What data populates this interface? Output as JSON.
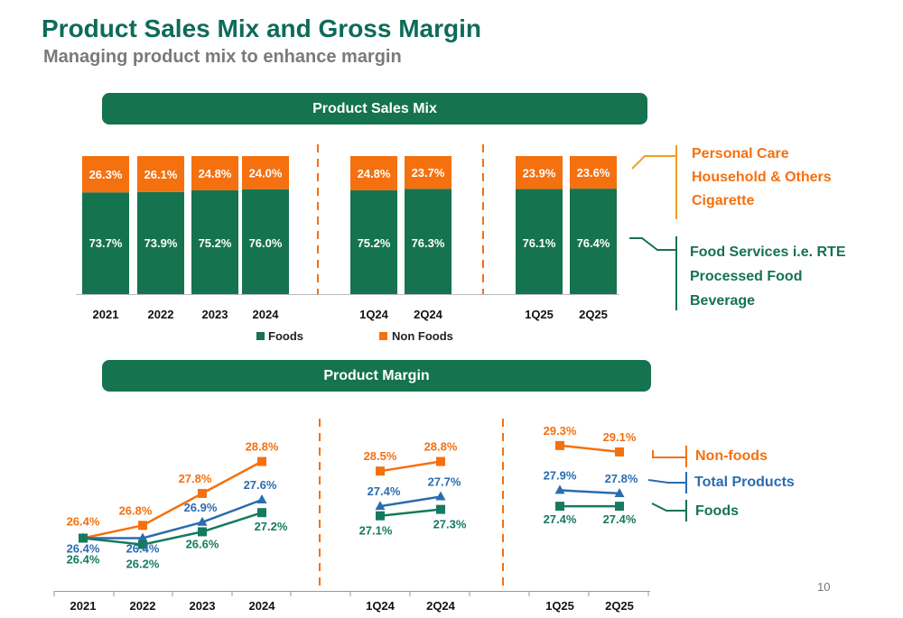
{
  "slide": {
    "title": "Product Sales Mix and Gross Margin",
    "subtitle": "Managing product mix to enhance margin",
    "page_number": "10"
  },
  "colors": {
    "foods": "#157350",
    "non_foods": "#f5700f",
    "total": "#2b6cb0",
    "foods_line": "#157a60",
    "banner": "#157350",
    "title": "#0e6b5a"
  },
  "sales_mix": {
    "banner": "Product Sales Mix",
    "legend": [
      "Foods",
      "Non Foods"
    ],
    "non_foods_bracket": [
      "Personal Care",
      "Household & Others",
      "Cigarette"
    ],
    "foods_bracket": [
      "Food Services i.e. RTE",
      "Processed Food",
      "Beverage"
    ]
  },
  "margin": {
    "banner": "Product Margin",
    "legend": [
      "Non-foods",
      "Total Products",
      "Foods"
    ]
  },
  "chart_data": [
    {
      "type": "bar",
      "stacked": true,
      "title": "Product Sales Mix",
      "categories": [
        "2021",
        "2022",
        "2023",
        "2024",
        "1Q24",
        "2Q24",
        "1Q25",
        "2Q25"
      ],
      "groups": [
        [
          "2021",
          "2022",
          "2023",
          "2024"
        ],
        [
          "1Q24",
          "2Q24"
        ],
        [
          "1Q25",
          "2Q25"
        ]
      ],
      "series": [
        {
          "name": "Foods",
          "values": [
            73.7,
            73.9,
            75.2,
            76.0,
            75.2,
            76.3,
            76.1,
            76.4
          ],
          "labels": [
            "73.7%",
            "73.9%",
            "75.2%",
            "76.0%",
            "75.2%",
            "76.3%",
            "76.1%",
            "76.4%"
          ]
        },
        {
          "name": "Non Foods",
          "values": [
            26.3,
            26.1,
            24.8,
            24.0,
            24.8,
            23.7,
            23.9,
            23.6
          ],
          "labels": [
            "26.3%",
            "26.1%",
            "24.8%",
            "24.0%",
            "24.8%",
            "23.7%",
            "23.9%",
            "23.6%"
          ]
        }
      ],
      "ylim": [
        0,
        100
      ],
      "legend_position": "bottom",
      "grid": false
    },
    {
      "type": "line",
      "title": "Product Margin",
      "categories": [
        "2021",
        "2022",
        "2023",
        "2024",
        "1Q24",
        "2Q24",
        "1Q25",
        "2Q25"
      ],
      "groups": [
        [
          "2021",
          "2022",
          "2023",
          "2024"
        ],
        [
          "1Q24",
          "2Q24"
        ],
        [
          "1Q25",
          "2Q25"
        ]
      ],
      "series": [
        {
          "name": "Non-foods",
          "marker": "square",
          "values": [
            26.4,
            26.8,
            27.8,
            28.8,
            28.5,
            28.8,
            29.3,
            29.1
          ],
          "labels": [
            "26.4%",
            "26.8%",
            "27.8%",
            "28.8%",
            "28.5%",
            "28.8%",
            "29.3%",
            "29.1%"
          ]
        },
        {
          "name": "Total Products",
          "marker": "triangle",
          "values": [
            26.4,
            26.4,
            26.9,
            27.6,
            27.4,
            27.7,
            27.9,
            27.8
          ],
          "labels": [
            "26.4%",
            "26.4%",
            "26.9%",
            "27.6%",
            "27.4%",
            "27.7%",
            "27.9%",
            "27.8%"
          ]
        },
        {
          "name": "Foods",
          "marker": "square",
          "values": [
            26.4,
            26.2,
            26.6,
            27.2,
            27.1,
            27.3,
            27.4,
            27.4
          ],
          "labels": [
            "26.4%",
            "26.2%",
            "26.6%",
            "27.2%",
            "27.1%",
            "27.3%",
            "27.4%",
            "27.4%"
          ]
        }
      ],
      "legend_position": "right",
      "grid": false
    }
  ]
}
